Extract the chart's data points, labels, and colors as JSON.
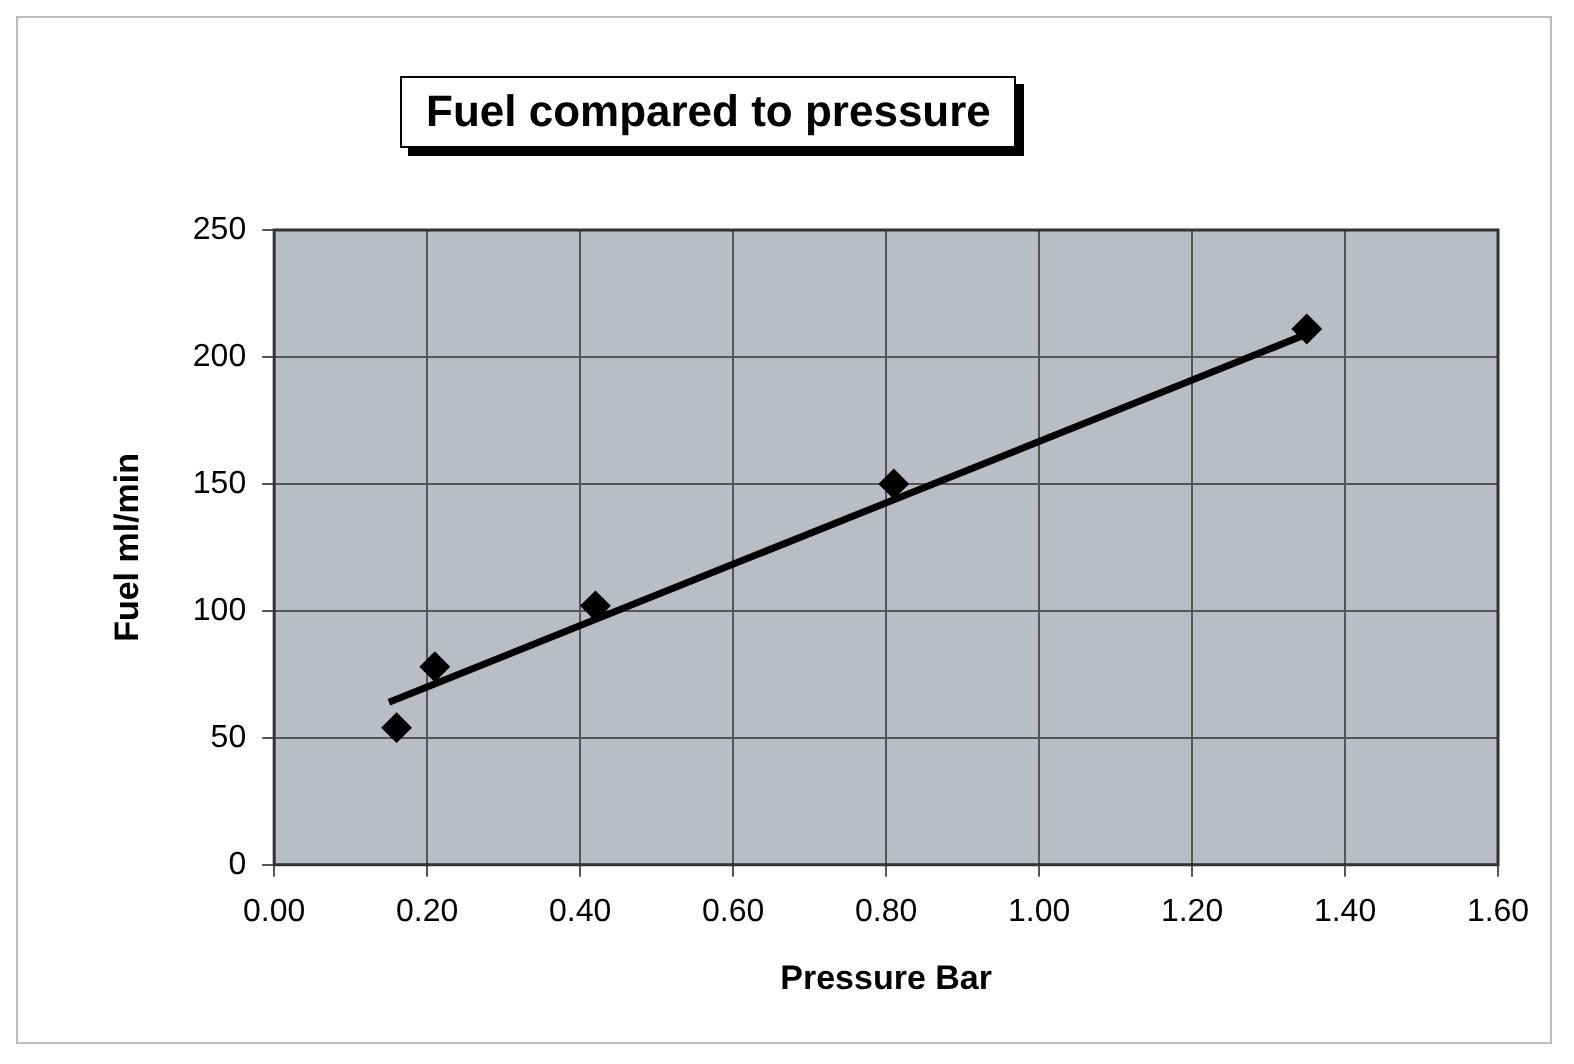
{
  "chart_data": {
    "type": "scatter",
    "title": "Fuel compared to pressure",
    "xlabel": "Pressure Bar",
    "ylabel": "Fuel ml/min",
    "series": [
      {
        "color": "#000000",
        "x": [
          0.16,
          0.21,
          0.42,
          0.81,
          1.35
        ],
        "values": [
          54,
          78,
          102,
          150,
          211
        ],
        "marker": "diamond"
      },
      {
        "type": "line",
        "color": "#000000",
        "x": [
          0.15,
          1.35
        ],
        "values": [
          64,
          209
        ],
        "marker": "none",
        "line_style": "solid"
      }
    ],
    "xlim": [
      0,
      1.6
    ],
    "xticks": [
      {
        "value": 0,
        "label": "0.00"
      },
      {
        "value": 0.2,
        "label": "0.20"
      },
      {
        "value": 0.4,
        "label": "0.40"
      },
      {
        "value": 0.6,
        "label": "0.60"
      },
      {
        "value": 0.8,
        "label": "0.80"
      },
      {
        "value": 1,
        "label": "1.00"
      },
      {
        "value": 1.2,
        "label": "1.20"
      },
      {
        "value": 1.4,
        "label": "1.40"
      },
      {
        "value": 1.6,
        "label": "1.60"
      }
    ],
    "ylim": [
      0,
      250
    ],
    "yticks": [
      0,
      50,
      100,
      150,
      200,
      250
    ],
    "grid": true,
    "legend": false
  }
}
